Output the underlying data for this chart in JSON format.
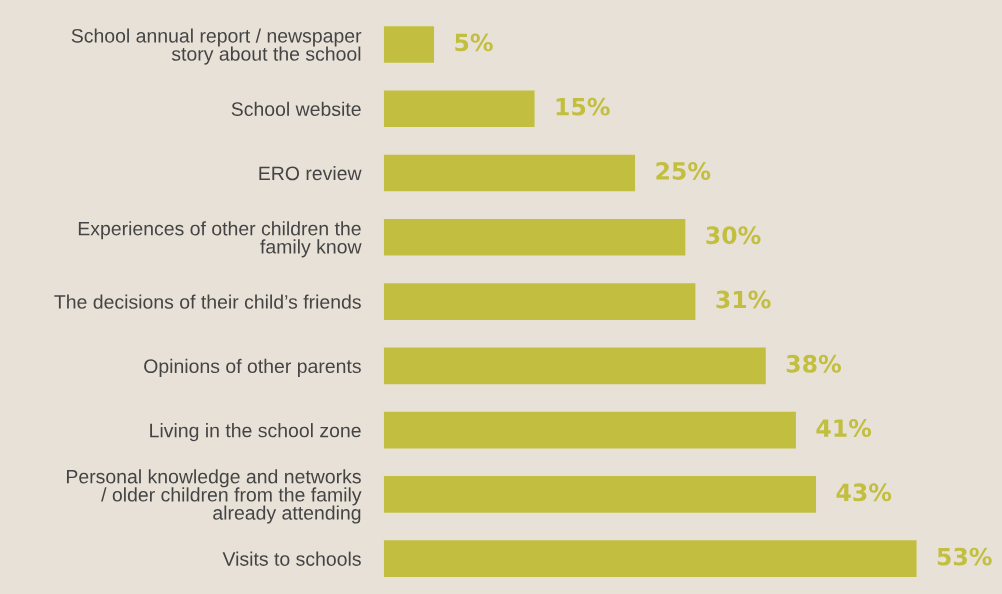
{
  "chart_data": {
    "type": "bar",
    "orientation": "horizontal",
    "categories": [
      "School annual report / newspaper\nstory about the school",
      "School website",
      "ERO review",
      "Experiences of other children the\nfamily know",
      "The decisions of their child’s friends",
      "Opinions of other parents",
      "Living in the school zone",
      "Personal knowledge and networks\n/ older children from the family\nalready attending",
      "Visits to schools"
    ],
    "values": [
      5,
      15,
      25,
      30,
      31,
      38,
      41,
      43,
      53
    ],
    "value_labels": [
      "5%",
      "15%",
      "25%",
      "30%",
      "31%",
      "38%",
      "41%",
      "43%",
      "53%"
    ],
    "color": "#c2bf40",
    "xlim": [
      0,
      61.5
    ],
    "grid": false,
    "legend": false
  }
}
